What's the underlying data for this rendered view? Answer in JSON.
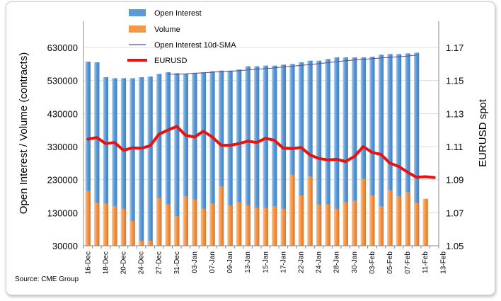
{
  "chart_data": {
    "type": "bar",
    "source_note": "Source: CME Group",
    "ylabel_left": "Open Interest / Volume (contracts)",
    "ylabel_right": "EURUSD spot",
    "ylim_left": [
      30000,
      630000
    ],
    "ylim_right": [
      1.05,
      1.17
    ],
    "left_ticks": [
      "630000",
      "530000",
      "430000",
      "330000",
      "230000",
      "130000",
      "30000"
    ],
    "right_ticks": [
      "1.17",
      "1.15",
      "1.13",
      "1.11",
      "1.09",
      "1.07",
      "1.05"
    ],
    "x_tick_labels": [
      "16-Dec",
      "18-Dec",
      "20-Dec",
      "24-Dec",
      "27-Dec",
      "31-Dec",
      "03-Jan",
      "07-Jan",
      "09-Jan",
      "13-Jan",
      "15-Jan",
      "17-Jan",
      "22-Jan",
      "24-Jan",
      "28-Jan",
      "30-Jan",
      "03-Feb",
      "05-Feb",
      "07-Feb",
      "11-Feb",
      "13-Feb"
    ],
    "legend": {
      "placement": "top-center",
      "entries": [
        "Open Interest",
        "Volume",
        "Open Interest 10d-SMA",
        "EURUSD"
      ]
    },
    "colors": {
      "open_interest": "#5b9bd5",
      "volume": "#f79646",
      "sma": "#5b4b8a",
      "eurusd": "#e8130f"
    },
    "series": [
      {
        "name": "Open Interest",
        "values": [
          587000,
          585000,
          540000,
          537000,
          537000,
          537000,
          540000,
          542000,
          550000,
          555000,
          552000,
          550000,
          553000,
          555000,
          558000,
          560000,
          560000,
          563000,
          573000,
          573000,
          575000,
          575000,
          578000,
          580000,
          585000,
          590000,
          590000,
          595000,
          600000,
          600000,
          600000,
          600000,
          602000,
          608000,
          610000,
          610000,
          612000,
          614000,
          0,
          0
        ]
      },
      {
        "name": "Volume",
        "values": [
          196000,
          160000,
          158000,
          150000,
          142000,
          105000,
          45000,
          45000,
          175000,
          155000,
          120000,
          180000,
          170000,
          142000,
          158000,
          210000,
          152000,
          162000,
          152000,
          145000,
          145000,
          150000,
          142000,
          245000,
          182000,
          240000,
          155000,
          155000,
          142000,
          162000,
          167000,
          232000,
          182000,
          150000,
          198000,
          180000,
          193000,
          160000,
          172000,
          0
        ]
      },
      {
        "name": "Open Interest 10d-SMA",
        "values": [
          null,
          null,
          null,
          null,
          null,
          null,
          null,
          null,
          null,
          549000,
          549000,
          550000,
          552000,
          553000,
          555000,
          557000,
          558000,
          560000,
          562000,
          564000,
          566000,
          568000,
          571000,
          573000,
          576000,
          578000,
          581000,
          584000,
          587000,
          590000,
          592000,
          594000,
          596000,
          598000,
          600000,
          602000,
          604000,
          607000,
          null,
          null
        ]
      },
      {
        "name": "EURUSD",
        "values": [
          1.1145,
          1.1155,
          1.1118,
          1.1125,
          1.1078,
          1.1092,
          1.109,
          1.1105,
          1.1175,
          1.12,
          1.1222,
          1.1168,
          1.1158,
          1.1193,
          1.1158,
          1.1108,
          1.1108,
          1.1118,
          1.1133,
          1.1125,
          1.115,
          1.1138,
          1.109,
          1.1088,
          1.1095,
          1.105,
          1.1028,
          1.102,
          1.1023,
          1.101,
          1.104,
          1.11,
          1.1065,
          1.1053,
          1.1,
          1.098,
          1.0945,
          1.0915,
          1.0918,
          1.0913
        ]
      }
    ]
  }
}
